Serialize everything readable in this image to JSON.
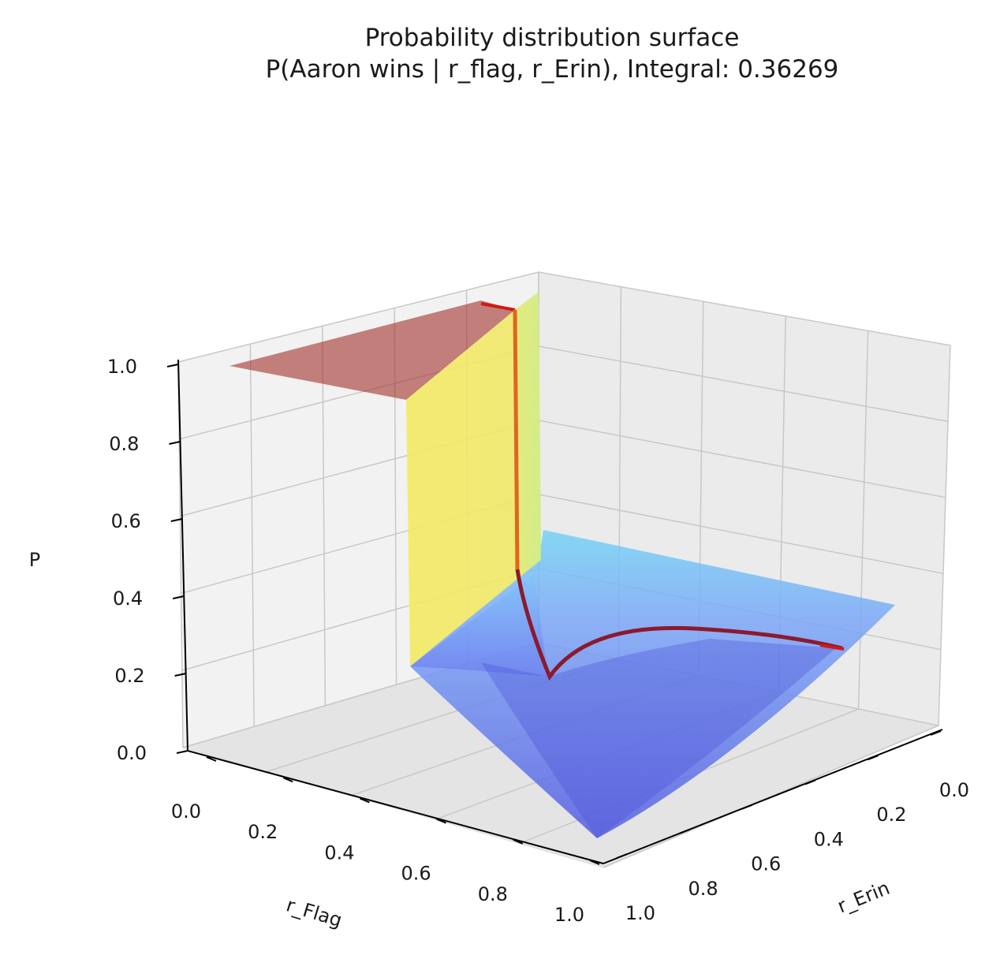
{
  "title": {
    "line1": "Probability distribution surface",
    "line2": "P(Aaron wins | r_flag, r_Erin), Integral: 0.36269"
  },
  "chart_data": {
    "type": "surface",
    "title": "Probability distribution surface",
    "subtitle": "P(Aaron wins | r_flag, r_Erin), Integral: 0.36269",
    "integral": 0.36269,
    "xlabel": "r_Flag",
    "ylabel": "r_Erin",
    "zlabel": "P",
    "xlim": [
      0,
      1
    ],
    "ylim": [
      0,
      1
    ],
    "zlim": [
      0,
      1
    ],
    "x_ticks": [
      "0.0",
      "0.2",
      "0.4",
      "0.6",
      "0.8",
      "1.0"
    ],
    "y_ticks": [
      "0.0",
      "0.2",
      "0.4",
      "0.6",
      "0.8",
      "1.0"
    ],
    "z_ticks": [
      "0.0",
      "0.2",
      "0.4",
      "0.6",
      "0.8",
      "1.0"
    ],
    "grid": true,
    "colormap": "jet",
    "surface_regions": [
      {
        "name": "plateau",
        "region": "r_Flag > r_Erin",
        "P": 1.0,
        "color": "#a0302b"
      },
      {
        "name": "cliff",
        "region": "r_Flag = r_Erin",
        "P_range": [
          0.4,
          1.0
        ],
        "color": "#f2e85a"
      },
      {
        "name": "basin",
        "region": "r_Flag < r_Erin",
        "P_range": [
          0.0,
          0.45
        ],
        "color": "#5a6cf0"
      }
    ],
    "ridge_curve": {
      "color": "#8b1a2e",
      "points": [
        {
          "r_Erin": 0.0,
          "r_Flag": 0.0,
          "P": 0.8
        },
        {
          "r_Erin": 0.0,
          "r_Flag": 0.0,
          "P": 0.4
        },
        {
          "r_Erin": 0.1,
          "r_Flag": 0.1,
          "P": 0.24
        },
        {
          "r_Erin": 0.16,
          "r_Flag": 0.16,
          "P": 0.2
        },
        {
          "r_Erin": 0.3,
          "r_Flag": 0.3,
          "P": 0.27
        },
        {
          "r_Erin": 0.5,
          "r_Flag": 0.5,
          "P": 0.33
        },
        {
          "r_Erin": 0.7,
          "r_Flag": 0.7,
          "P": 0.33
        },
        {
          "r_Erin": 0.85,
          "r_Flag": 0.85,
          "P": 0.31
        },
        {
          "r_Erin": 1.0,
          "r_Flag": 1.0,
          "P": 0.29
        }
      ]
    }
  }
}
